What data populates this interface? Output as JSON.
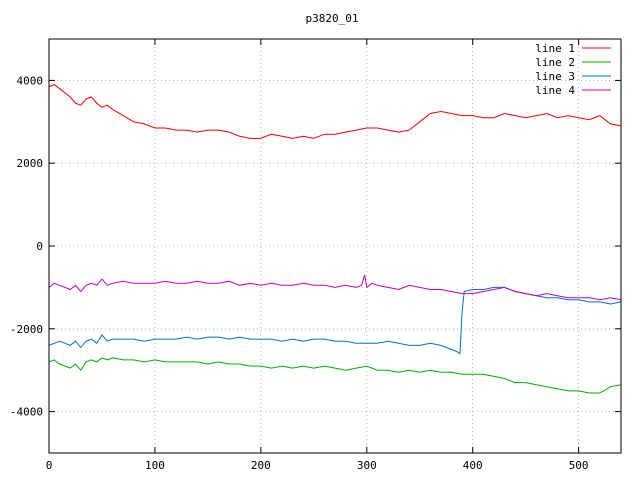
{
  "chart_data": {
    "type": "line",
    "title": "p3820_01",
    "xlim": [
      0,
      540
    ],
    "ylim": [
      -5000,
      5000
    ],
    "x_ticks": [
      0,
      100,
      200,
      300,
      400,
      500
    ],
    "y_ticks": [
      -4000,
      -2000,
      0,
      2000,
      4000
    ],
    "grid": true,
    "legend_position": "top-right",
    "series": [
      {
        "name": "line 1",
        "color": "#ff0000",
        "x": [
          0,
          5,
          10,
          15,
          20,
          25,
          30,
          35,
          40,
          45,
          50,
          55,
          60,
          70,
          80,
          90,
          100,
          110,
          120,
          130,
          140,
          150,
          160,
          170,
          180,
          190,
          200,
          210,
          220,
          230,
          240,
          250,
          260,
          270,
          280,
          290,
          300,
          310,
          320,
          330,
          340,
          350,
          360,
          370,
          380,
          390,
          400,
          410,
          420,
          430,
          440,
          450,
          460,
          470,
          480,
          490,
          500,
          510,
          520,
          530,
          540
        ],
        "y": [
          3850,
          3900,
          3800,
          3700,
          3600,
          3450,
          3400,
          3550,
          3600,
          3450,
          3350,
          3400,
          3300,
          3150,
          3000,
          2950,
          2850,
          2850,
          2800,
          2800,
          2750,
          2800,
          2800,
          2750,
          2650,
          2600,
          2600,
          2700,
          2650,
          2600,
          2650,
          2600,
          2700,
          2700,
          2750,
          2800,
          2850,
          2850,
          2800,
          2750,
          2800,
          3000,
          3200,
          3250,
          3200,
          3150,
          3150,
          3100,
          3100,
          3200,
          3150,
          3100,
          3150,
          3200,
          3100,
          3150,
          3100,
          3050,
          3150,
          2950,
          2900
        ]
      },
      {
        "name": "line 2",
        "color": "#00b000",
        "x": [
          0,
          5,
          10,
          15,
          20,
          25,
          30,
          35,
          40,
          45,
          50,
          55,
          60,
          70,
          80,
          90,
          100,
          110,
          120,
          130,
          140,
          150,
          160,
          170,
          180,
          190,
          200,
          210,
          220,
          230,
          240,
          250,
          260,
          270,
          280,
          290,
          300,
          310,
          320,
          330,
          340,
          350,
          360,
          370,
          380,
          390,
          400,
          410,
          420,
          430,
          440,
          450,
          460,
          470,
          480,
          490,
          500,
          510,
          520,
          530,
          540
        ],
        "y": [
          -2800,
          -2750,
          -2850,
          -2900,
          -2950,
          -2850,
          -3000,
          -2800,
          -2750,
          -2800,
          -2700,
          -2750,
          -2700,
          -2750,
          -2750,
          -2800,
          -2750,
          -2800,
          -2800,
          -2800,
          -2800,
          -2850,
          -2800,
          -2850,
          -2850,
          -2900,
          -2900,
          -2950,
          -2900,
          -2950,
          -2900,
          -2950,
          -2900,
          -2950,
          -3000,
          -2950,
          -2900,
          -3000,
          -3000,
          -3050,
          -3000,
          -3050,
          -3000,
          -3050,
          -3050,
          -3100,
          -3100,
          -3100,
          -3150,
          -3200,
          -3300,
          -3300,
          -3350,
          -3400,
          -3450,
          -3500,
          -3500,
          -3550,
          -3550,
          -3400,
          -3350
        ]
      },
      {
        "name": "line 3",
        "color": "#0070d0",
        "x": [
          0,
          5,
          10,
          15,
          20,
          25,
          30,
          35,
          40,
          45,
          50,
          55,
          60,
          70,
          80,
          90,
          100,
          110,
          120,
          130,
          140,
          150,
          160,
          170,
          180,
          190,
          200,
          210,
          220,
          230,
          240,
          250,
          260,
          270,
          280,
          290,
          300,
          310,
          320,
          330,
          340,
          350,
          360,
          370,
          380,
          385,
          388,
          390,
          392,
          400,
          410,
          420,
          430,
          440,
          450,
          460,
          470,
          480,
          490,
          500,
          510,
          520,
          530,
          540
        ],
        "y": [
          -2400,
          -2350,
          -2300,
          -2350,
          -2400,
          -2300,
          -2450,
          -2300,
          -2250,
          -2350,
          -2150,
          -2300,
          -2250,
          -2250,
          -2250,
          -2300,
          -2250,
          -2250,
          -2250,
          -2200,
          -2250,
          -2200,
          -2200,
          -2250,
          -2200,
          -2250,
          -2250,
          -2250,
          -2300,
          -2250,
          -2300,
          -2250,
          -2250,
          -2300,
          -2300,
          -2350,
          -2350,
          -2350,
          -2300,
          -2350,
          -2400,
          -2400,
          -2350,
          -2400,
          -2500,
          -2550,
          -2600,
          -1600,
          -1100,
          -1050,
          -1050,
          -1000,
          -1000,
          -1100,
          -1150,
          -1200,
          -1250,
          -1250,
          -1300,
          -1300,
          -1350,
          -1350,
          -1400,
          -1350
        ]
      },
      {
        "name": "line 4",
        "color": "#c000c0",
        "x": [
          0,
          5,
          10,
          15,
          20,
          25,
          30,
          35,
          40,
          45,
          50,
          55,
          60,
          70,
          80,
          90,
          100,
          110,
          120,
          130,
          140,
          150,
          160,
          170,
          180,
          190,
          200,
          210,
          220,
          230,
          240,
          250,
          260,
          270,
          280,
          290,
          295,
          298,
          300,
          305,
          310,
          320,
          330,
          340,
          350,
          360,
          370,
          380,
          390,
          400,
          410,
          420,
          430,
          440,
          450,
          460,
          470,
          480,
          490,
          500,
          510,
          520,
          530,
          540
        ],
        "y": [
          -1000,
          -900,
          -950,
          -1000,
          -1050,
          -950,
          -1100,
          -950,
          -900,
          -950,
          -800,
          -950,
          -900,
          -850,
          -900,
          -900,
          -900,
          -850,
          -900,
          -900,
          -850,
          -900,
          -900,
          -850,
          -950,
          -900,
          -950,
          -900,
          -950,
          -950,
          -900,
          -950,
          -950,
          -1000,
          -950,
          -1000,
          -950,
          -700,
          -1000,
          -900,
          -950,
          -1000,
          -1050,
          -950,
          -1000,
          -1050,
          -1050,
          -1100,
          -1150,
          -1150,
          -1100,
          -1050,
          -1000,
          -1100,
          -1150,
          -1200,
          -1150,
          -1200,
          -1250,
          -1250,
          -1250,
          -1300,
          -1250,
          -1300
        ]
      }
    ]
  }
}
